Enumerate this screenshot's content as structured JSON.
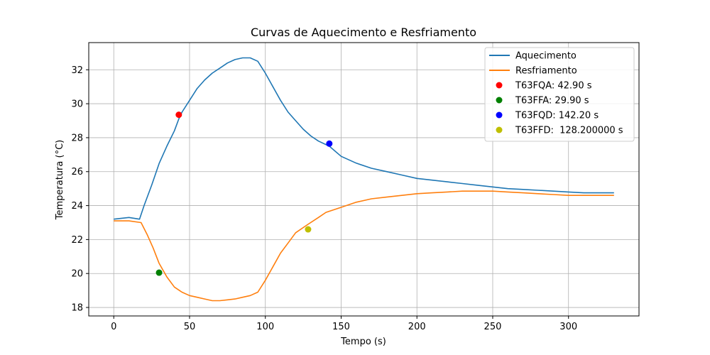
{
  "chart_data": {
    "type": "line",
    "title": "Curvas de Aquecimento e Resfriamento",
    "xlabel": "Tempo (s)",
    "ylabel": "Temperatura (°C)",
    "xlim": [
      -16.5,
      346.5
    ],
    "ylim": [
      17.5,
      33.6
    ],
    "xticks": [
      0,
      50,
      100,
      150,
      200,
      250,
      300
    ],
    "yticks": [
      18,
      20,
      22,
      24,
      26,
      28,
      30,
      32
    ],
    "grid": true,
    "legend_position": "top-right",
    "series": [
      {
        "name": "Aquecimento",
        "color": "#1f77b4",
        "kind": "line",
        "x": [
          0,
          10,
          17,
          20,
          25,
          30,
          35,
          40,
          42.9,
          45,
          50,
          55,
          60,
          65,
          70,
          75,
          80,
          85,
          90,
          95,
          100,
          105,
          110,
          115,
          120,
          125,
          130,
          135,
          142.2,
          150,
          160,
          170,
          180,
          190,
          200,
          210,
          220,
          230,
          240,
          250,
          260,
          270,
          280,
          290,
          300,
          310,
          320,
          330
        ],
        "y": [
          23.2,
          23.3,
          23.2,
          24.0,
          25.2,
          26.5,
          27.5,
          28.4,
          29.1,
          29.5,
          30.2,
          30.9,
          31.4,
          31.8,
          32.1,
          32.4,
          32.6,
          32.7,
          32.7,
          32.5,
          31.8,
          31.0,
          30.2,
          29.5,
          29.0,
          28.5,
          28.1,
          27.8,
          27.5,
          26.9,
          26.5,
          26.2,
          26.0,
          25.8,
          25.6,
          25.5,
          25.4,
          25.3,
          25.2,
          25.1,
          25.0,
          24.95,
          24.9,
          24.85,
          24.8,
          24.75,
          24.75,
          24.75
        ]
      },
      {
        "name": "Resfriamento",
        "color": "#ff7f0e",
        "kind": "line",
        "x": [
          0,
          10,
          18,
          22,
          26,
          29.9,
          35,
          40,
          45,
          50,
          55,
          60,
          65,
          70,
          75,
          80,
          85,
          90,
          95,
          100,
          105,
          110,
          115,
          120,
          128.2,
          135,
          140,
          150,
          160,
          170,
          180,
          190,
          200,
          210,
          220,
          230,
          240,
          250,
          260,
          270,
          280,
          290,
          300,
          310,
          320,
          330
        ],
        "y": [
          23.1,
          23.1,
          23.0,
          22.3,
          21.5,
          20.6,
          19.8,
          19.2,
          18.9,
          18.7,
          18.6,
          18.5,
          18.4,
          18.4,
          18.45,
          18.5,
          18.6,
          18.7,
          18.9,
          19.6,
          20.4,
          21.2,
          21.8,
          22.4,
          22.9,
          23.3,
          23.6,
          23.9,
          24.2,
          24.4,
          24.5,
          24.6,
          24.7,
          24.75,
          24.8,
          24.85,
          24.85,
          24.85,
          24.8,
          24.75,
          24.7,
          24.65,
          24.6,
          24.6,
          24.6,
          24.6
        ]
      },
      {
        "name": "T63FQA: 42.90 s",
        "color": "#ff0000",
        "kind": "point",
        "x": [
          42.9
        ],
        "y": [
          29.35
        ]
      },
      {
        "name": "T63FFA: 29.90 s",
        "color": "#008000",
        "kind": "point",
        "x": [
          29.9
        ],
        "y": [
          20.05
        ]
      },
      {
        "name": "T63FQD: 142.20 s",
        "color": "#0000ff",
        "kind": "point",
        "x": [
          142.2
        ],
        "y": [
          27.65
        ]
      },
      {
        "name": "T63FFD:  128.200000 s",
        "color": "#bfbf00",
        "kind": "point",
        "x": [
          128.2
        ],
        "y": [
          22.6
        ]
      }
    ]
  }
}
